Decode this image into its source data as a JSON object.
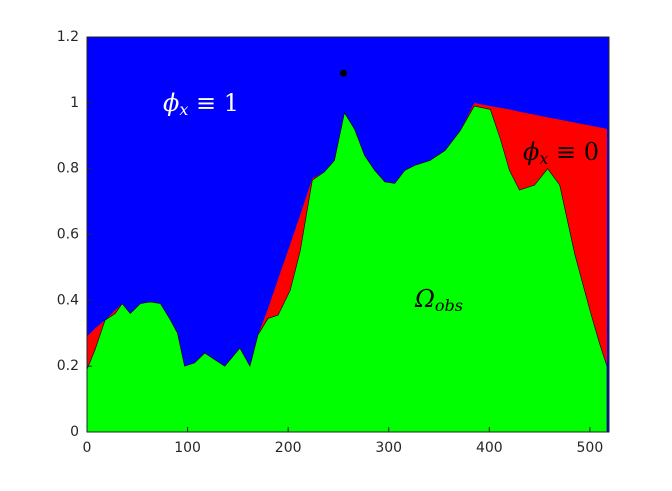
{
  "chart_data": {
    "type": "area",
    "x": [
      0,
      8,
      18,
      28,
      35,
      43,
      53,
      63,
      73,
      83,
      90,
      97,
      107,
      117,
      127,
      137,
      152,
      162,
      170,
      180,
      190,
      202,
      212,
      224,
      236,
      246,
      256,
      266,
      276,
      286,
      296,
      306,
      316,
      326,
      341,
      356,
      371,
      385,
      401,
      411,
      420,
      430,
      445,
      458,
      470,
      485,
      500,
      510,
      517
    ],
    "series": [
      {
        "color": "#ff0000",
        "values": [
          0.29,
          0.315,
          0.34,
          0.37,
          0.39,
          0.36,
          0.39,
          0.395,
          0.39,
          0.34,
          0.3,
          0.2,
          0.21,
          0.24,
          0.22,
          0.2,
          0.255,
          0.2,
          0.295,
          0.375,
          0.465,
          0.57,
          0.66,
          0.77,
          0.79,
          0.825,
          0.97,
          0.92,
          0.84,
          0.795,
          0.76,
          0.755,
          0.795,
          0.81,
          0.825,
          0.855,
          0.915,
          1.0,
          0.99,
          0.985,
          0.98,
          0.973,
          0.964,
          0.956,
          0.949,
          0.94,
          0.931,
          0.925,
          0.921
        ]
      },
      {
        "color": "#00ff00",
        "values": [
          0.19,
          0.25,
          0.34,
          0.36,
          0.39,
          0.36,
          0.39,
          0.395,
          0.39,
          0.34,
          0.3,
          0.2,
          0.21,
          0.24,
          0.22,
          0.2,
          0.255,
          0.2,
          0.295,
          0.345,
          0.355,
          0.43,
          0.55,
          0.765,
          0.79,
          0.825,
          0.97,
          0.92,
          0.84,
          0.795,
          0.76,
          0.755,
          0.795,
          0.81,
          0.825,
          0.855,
          0.915,
          0.99,
          0.98,
          0.89,
          0.795,
          0.735,
          0.75,
          0.8,
          0.75,
          0.54,
          0.37,
          0.265,
          0.2
        ]
      }
    ],
    "background_color": "#0000ff",
    "point": {
      "x": 255,
      "y": 1.09,
      "color": "#000000"
    },
    "annotations": [
      {
        "symbol": "ϕ",
        "sub": "x",
        "text": " ≡ 1",
        "color": "#ffffff"
      },
      {
        "symbol": "ϕ",
        "sub": "x",
        "text": " ≡ 0",
        "color": "#000000"
      },
      {
        "symbol": "Ω",
        "sub": "obs",
        "text": "",
        "color": "#000000"
      }
    ],
    "xlim": [
      0,
      519
    ],
    "ylim": [
      0,
      1.2
    ],
    "xticks": [
      0,
      100,
      200,
      300,
      400,
      500
    ],
    "yticks": [
      0,
      0.2,
      0.4,
      0.6,
      0.8,
      1,
      1.2
    ]
  }
}
